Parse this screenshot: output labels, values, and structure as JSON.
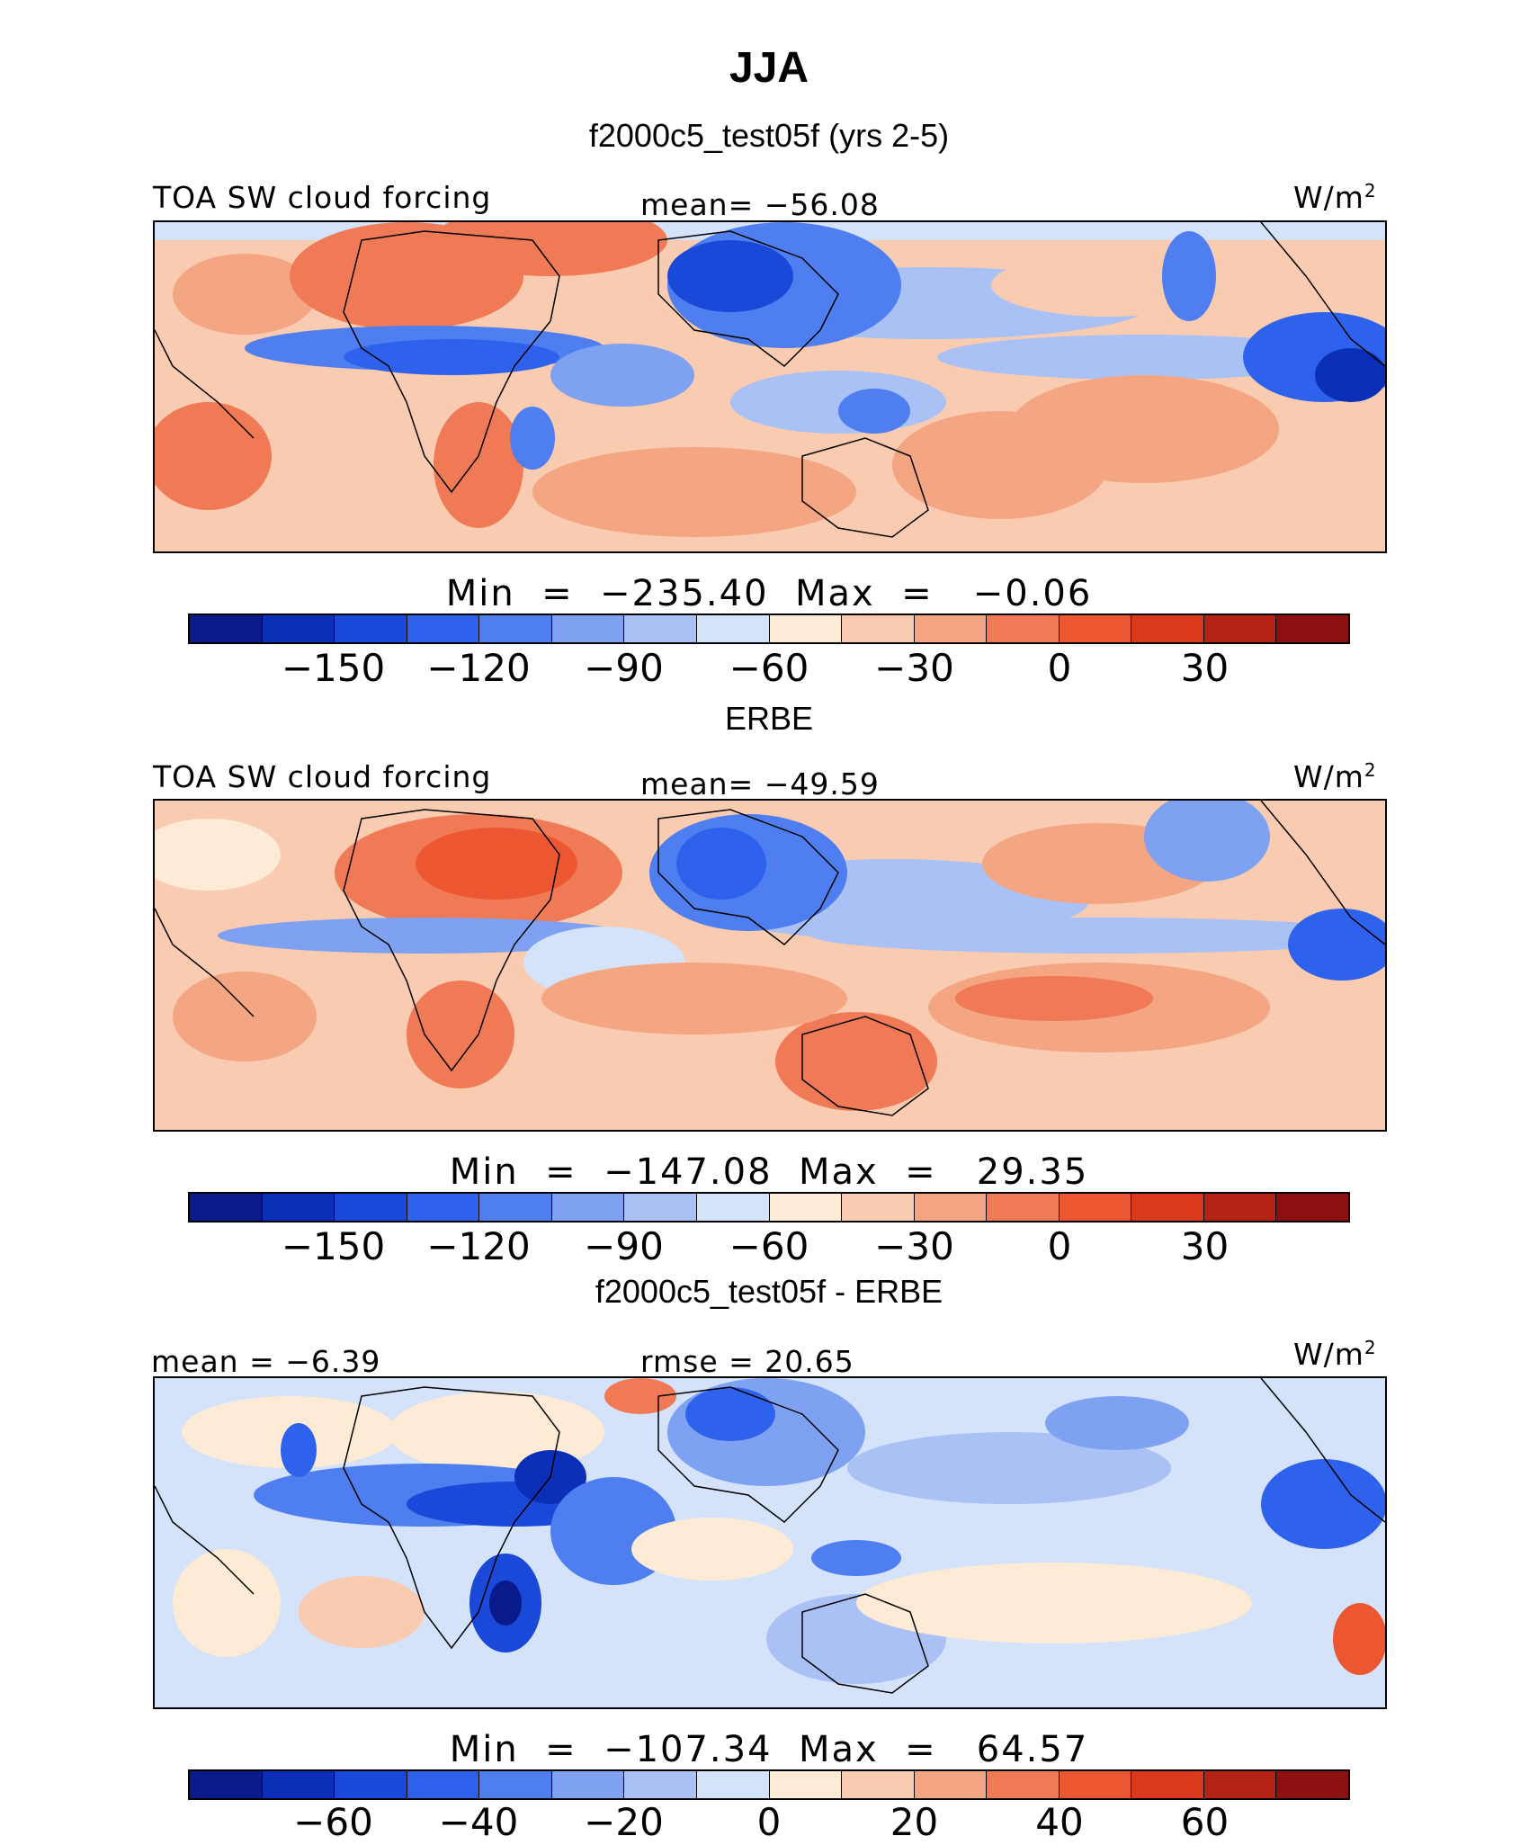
{
  "header": {
    "title": "JJA",
    "case_subtitle": "f2000c5_test05f (yrs 2-5)"
  },
  "palette": [
    "#0a1a8a",
    "#0c2fb8",
    "#1a48d8",
    "#2f62ec",
    "#4f7ef0",
    "#7ea1f2",
    "#a9c1f5",
    "#d4e2fa",
    "#fdebd6",
    "#f9cbb0",
    "#f4a582",
    "#f07a55",
    "#ec5630",
    "#d93a1c",
    "#b42414",
    "#8c1010"
  ],
  "panels": [
    {
      "section_title": "",
      "left_label": "TOA SW cloud forcing",
      "center_label": "mean= −56.08",
      "units": "W/m",
      "units_sup": "2",
      "minmax": "Min  =  −235.40  Max  =   −0.06",
      "colorbar_ticks": [
        "−150",
        "−120",
        "−90",
        "−60",
        "−30",
        "0",
        "30"
      ],
      "tick_positions": [
        2,
        4,
        6,
        8,
        10,
        12,
        14
      ]
    },
    {
      "section_title": "ERBE",
      "left_label": "TOA SW cloud forcing",
      "center_label": "mean= −49.59",
      "units": "W/m",
      "units_sup": "2",
      "minmax": "Min  =  −147.08  Max  =   29.35",
      "colorbar_ticks": [
        "−150",
        "−120",
        "−90",
        "−60",
        "−30",
        "0",
        "30"
      ],
      "tick_positions": [
        2,
        4,
        6,
        8,
        10,
        12,
        14
      ]
    },
    {
      "section_title": "f2000c5_test05f - ERBE",
      "left_label": "mean =  −6.39",
      "center_label": "rmse =  20.65",
      "units": "W/m",
      "units_sup": "2",
      "minmax": "Min  =  −107.34  Max  =   64.57",
      "colorbar_ticks": [
        "−60",
        "−40",
        "−20",
        "0",
        "20",
        "40",
        "60"
      ],
      "tick_positions": [
        2,
        4,
        6,
        8,
        10,
        12,
        14
      ]
    }
  ]
}
